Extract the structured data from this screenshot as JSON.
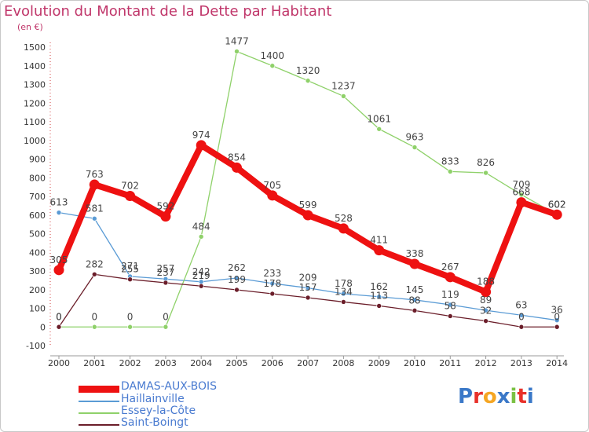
{
  "title": "Evolution du Montant de la Dette par Habitant",
  "unit": "(en €)",
  "logo": {
    "text": "Proxiti",
    "letter_colors": [
      "#3a78c8",
      "#e8312a",
      "#f5a623",
      "#3a78c8",
      "#7ac143",
      "#e8312a",
      "#3a78c8"
    ]
  },
  "chart_data": {
    "type": "line",
    "x": [
      "2000",
      "2001",
      "2002",
      "2003",
      "2004",
      "2005",
      "2006",
      "2007",
      "2008",
      "2009",
      "2010",
      "2011",
      "2012",
      "2013",
      "2014"
    ],
    "ylim": [
      -100,
      1500
    ],
    "yticks": [
      -100,
      0,
      100,
      200,
      300,
      400,
      500,
      600,
      700,
      800,
      900,
      1000,
      1100,
      1200,
      1300,
      1400,
      1500
    ],
    "grid": false,
    "legend_position": "bottom-left",
    "series": [
      {
        "name": "Haillainville",
        "color": "#5a9bd5",
        "values": [
          613,
          581,
          271,
          257,
          242,
          262,
          233,
          209,
          178,
          162,
          145,
          119,
          89,
          63,
          36
        ]
      },
      {
        "name": "Essey-la-Côte",
        "color": "#8fd16a",
        "values": [
          0,
          0,
          0,
          0,
          484,
          1477,
          1400,
          1320,
          1237,
          1061,
          963,
          833,
          826,
          709,
          602
        ]
      },
      {
        "name": "Saint-Boingt",
        "color": "#6b1e2a",
        "values": [
          0,
          282,
          255,
          237,
          219,
          199,
          178,
          157,
          134,
          113,
          88,
          58,
          32,
          0,
          0
        ]
      },
      {
        "name": "DAMAS-AUX-BOIS",
        "color": "#ee1111",
        "highlight": true,
        "values": [
          305,
          763,
          702,
          592,
          974,
          854,
          705,
          599,
          528,
          411,
          338,
          267,
          188,
          668,
          602
        ]
      }
    ],
    "point_labels": [
      {
        "series": "Haillainville",
        "labels": [
          "613",
          "581",
          "271",
          "257",
          "242",
          "262",
          "233",
          "209",
          "178",
          "162",
          "145",
          "119",
          "89",
          "63",
          "36"
        ]
      },
      {
        "series": "Essey-la-Côte",
        "labels": [
          "0",
          "0",
          "0",
          "0",
          "484",
          "1477",
          "1400",
          "1320",
          "1237",
          "1061",
          "963",
          "833",
          "826",
          "709",
          "602"
        ]
      },
      {
        "series": "Saint-Boingt",
        "labels": [
          "0",
          "282",
          "255",
          "237",
          "219",
          "199",
          "178",
          "157",
          "134",
          "113",
          "88",
          "58",
          "32",
          "0",
          "0"
        ]
      },
      {
        "series": "DAMAS-AUX-BOIS",
        "labels": [
          "305",
          "763",
          "702",
          "592",
          "974",
          "854",
          "705",
          "599",
          "528",
          "411",
          "338",
          "267",
          "188",
          "668",
          "602"
        ]
      }
    ]
  },
  "legend": [
    {
      "label": "DAMAS-AUX-BOIS",
      "color": "#ee1111",
      "thick": true
    },
    {
      "label": "Haillainville",
      "color": "#5a9bd5",
      "thick": false
    },
    {
      "label": "Essey-la-Côte",
      "color": "#8fd16a",
      "thick": false
    },
    {
      "label": "Saint-Boingt",
      "color": "#6b1e2a",
      "thick": false
    }
  ]
}
